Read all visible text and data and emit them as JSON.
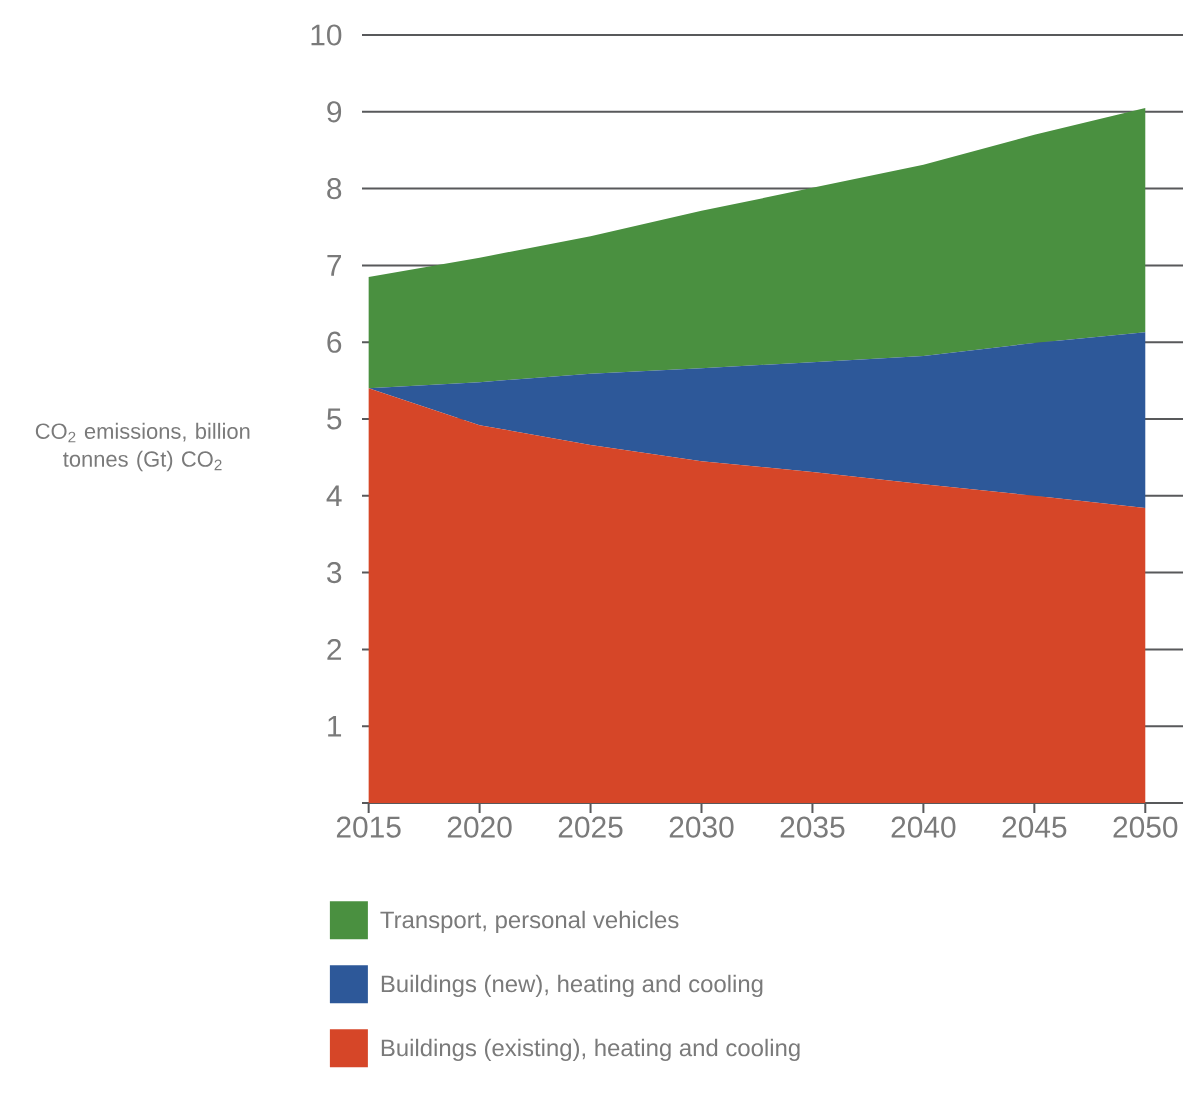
{
  "chart_data": {
    "type": "area",
    "stacked": true,
    "ylabel": "CO$_{2}$ emissions, billion tonnes (Gt) CO$_{2}$",
    "x": [
      2015,
      2020,
      2025,
      2030,
      2035,
      2040,
      2045,
      2050
    ],
    "series": [
      {
        "name": "Buildings (existing), heating and cooling",
        "color": "#d64628",
        "values": [
          5.4,
          4.92,
          4.66,
          4.45,
          4.31,
          4.15,
          4.0,
          3.84
        ]
      },
      {
        "name": "Buildings (new), heating and cooling",
        "color": "#2d5899",
        "values": [
          0,
          0.56,
          0.93,
          1.21,
          1.43,
          1.67,
          1.99,
          2.29
        ]
      },
      {
        "name": "Transport, personal vehicles",
        "color": "#4a9040",
        "values": [
          1.45,
          1.62,
          1.79,
          2.05,
          2.27,
          2.49,
          2.71,
          2.92
        ]
      }
    ],
    "xlim": [
      2014.7,
      2051.7
    ],
    "ylim": [
      0,
      10
    ],
    "xticks": [
      2015,
      2020,
      2025,
      2030,
      2035,
      2040,
      2045,
      2050
    ],
    "yticks": [
      {
        "value": 0,
        "label": null
      },
      1,
      2,
      3,
      4,
      5,
      6,
      7,
      8,
      9,
      10
    ],
    "grid": "y",
    "legend": "bottom"
  }
}
